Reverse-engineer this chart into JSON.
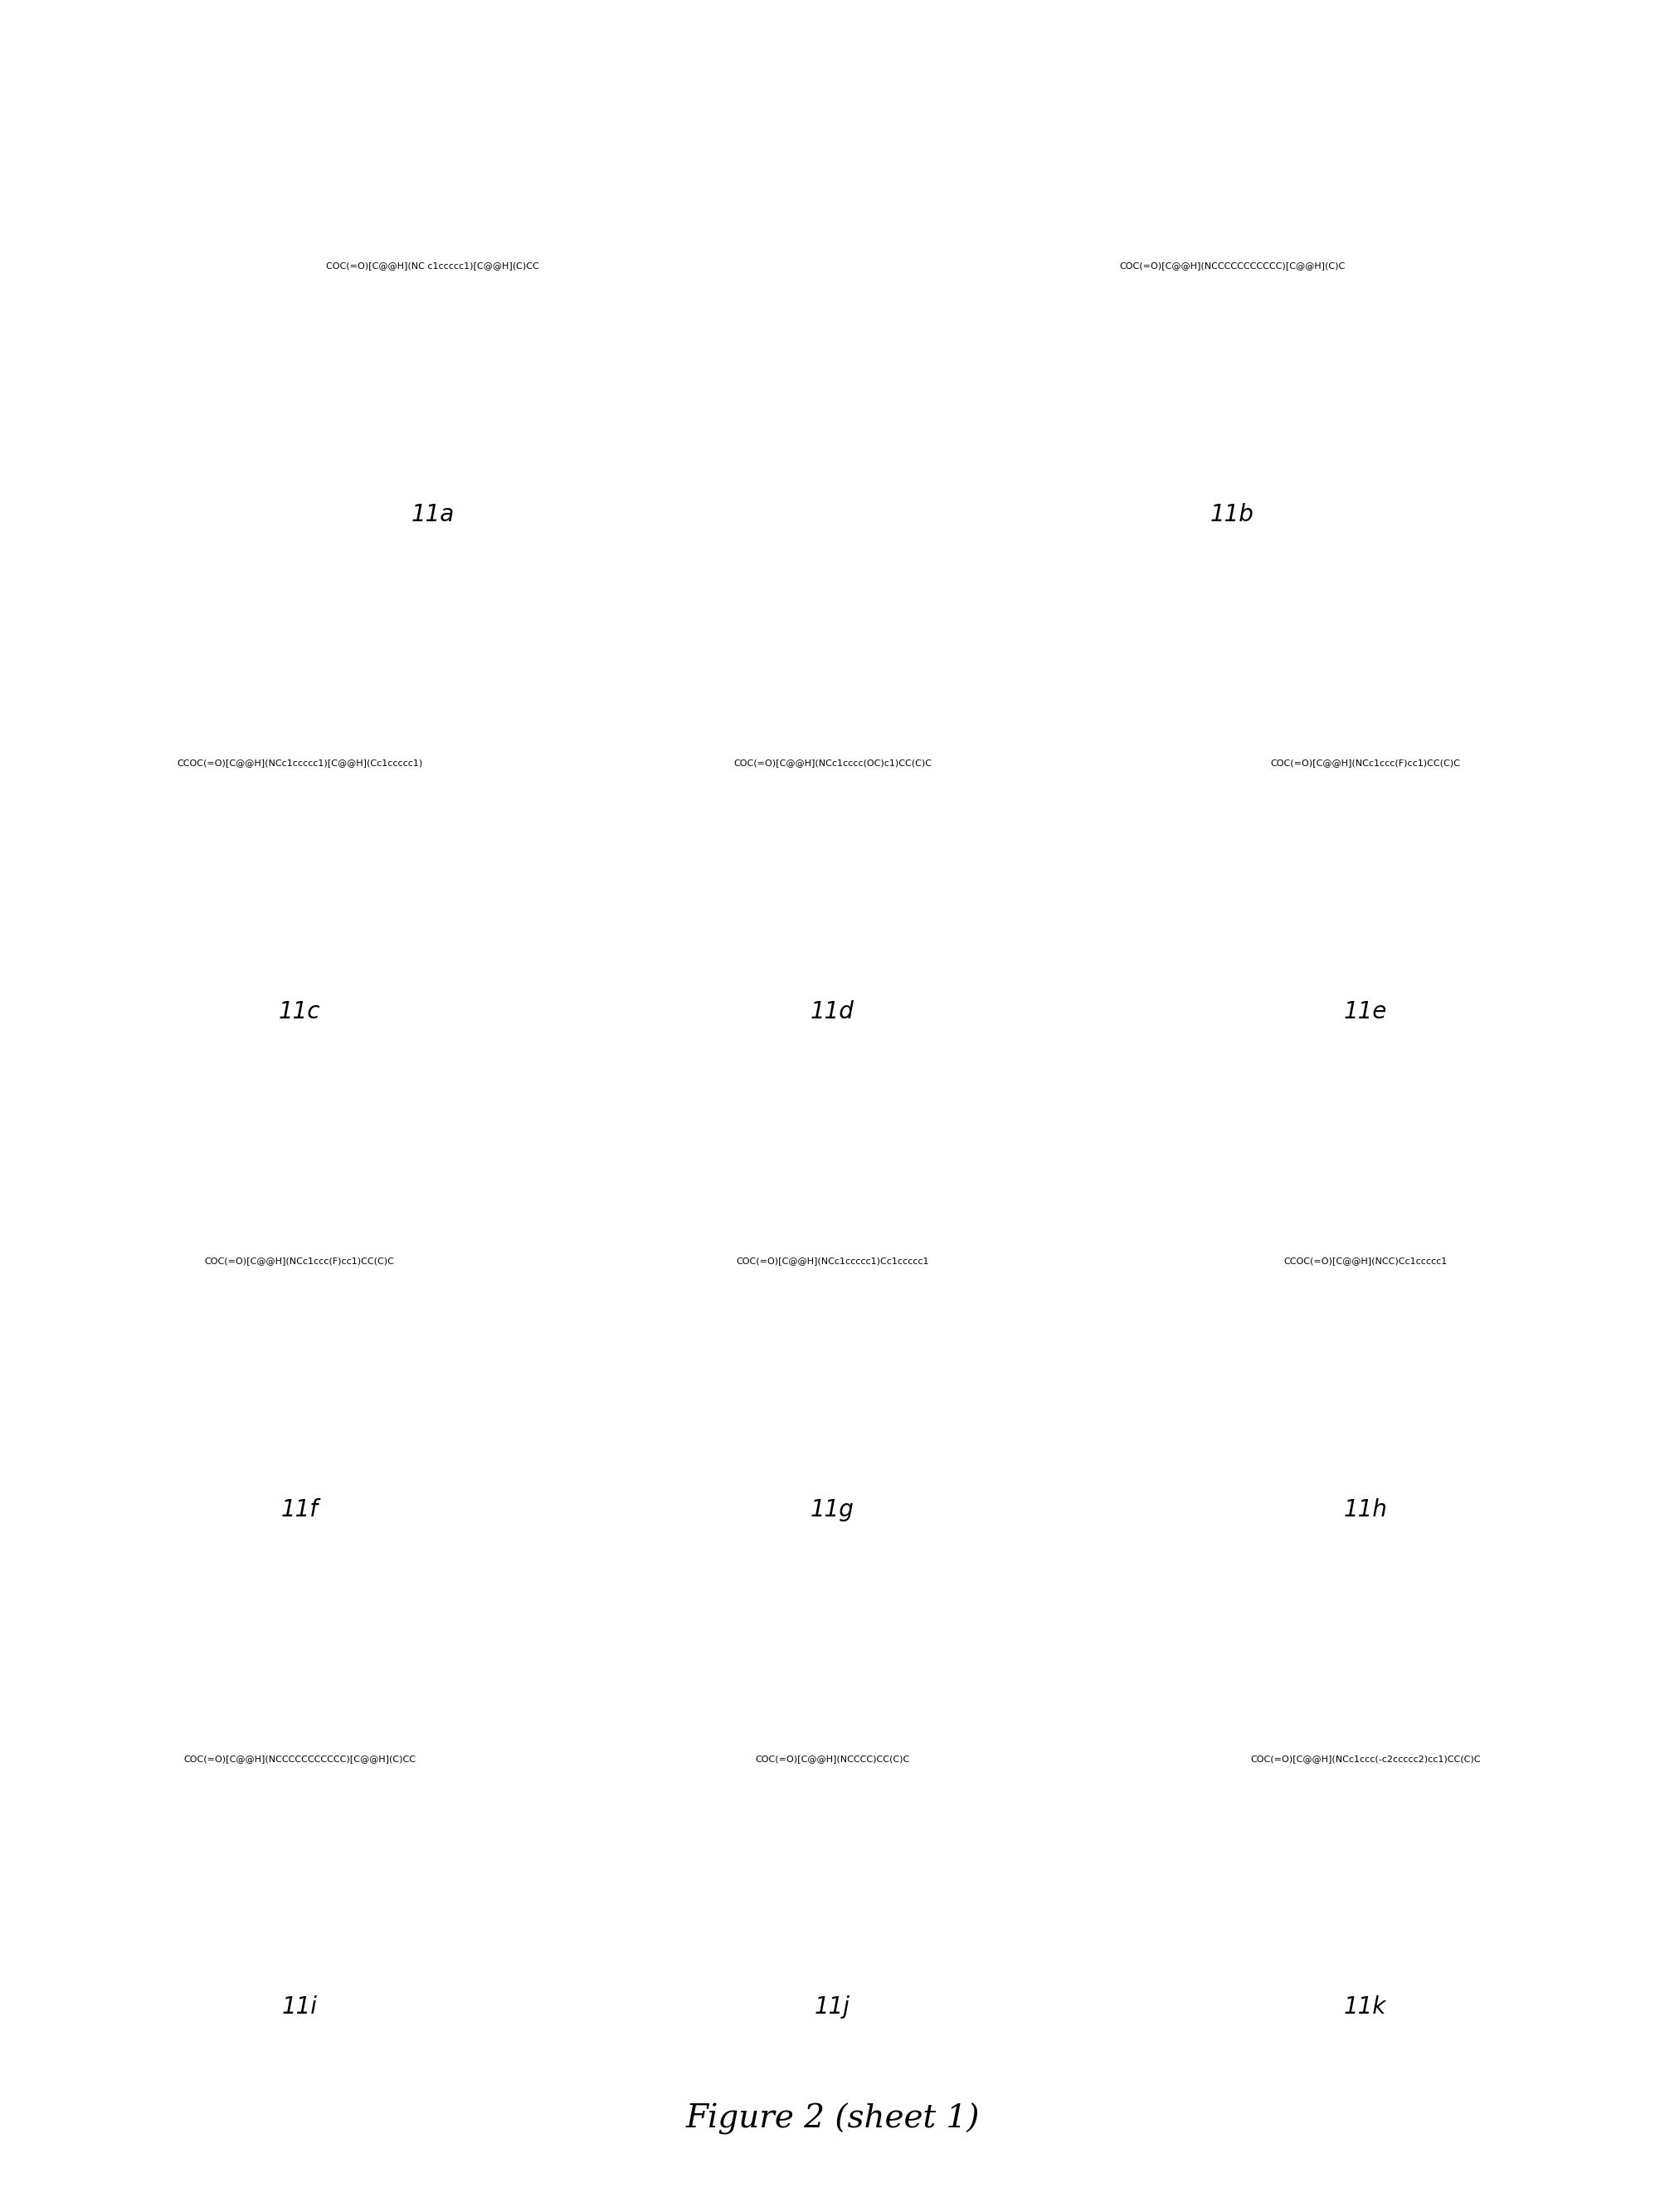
{
  "title": "Figure 2 (sheet 1)",
  "title_fontsize": 28,
  "title_style": "italic",
  "compounds": [
    {
      "id": "11a",
      "smiles": "COC(=O)[C@@H](NC c1ccccc1)[C@@H](C)CC",
      "label": "11a",
      "col": 0,
      "row": 0
    },
    {
      "id": "11b",
      "smiles": "COC(=O)[C@@H](NCCCCCCCCCCC)[C@@H](C)C",
      "label": "11b",
      "col": 1,
      "row": 0
    },
    {
      "id": "11c",
      "smiles": "CCOC(=O)[C@@H](NCc1ccccc1)[C@@H](Cc1ccccc1)",
      "label": "11c",
      "col": 0,
      "row": 1
    },
    {
      "id": "11d",
      "smiles": "COC(=O)[C@@H](NCc1cccc(OC)c1)CC(C)C",
      "label": "11d",
      "col": 1,
      "row": 1
    },
    {
      "id": "11e",
      "smiles": "COC(=O)[C@@H](NCc1ccc(F)cc1)CC(C)C",
      "label": "11e",
      "col": 2,
      "row": 1
    },
    {
      "id": "11f",
      "smiles": "COC(=O)[C@@H](NCc1ccc(F)cc1)CC(C)C",
      "label": "11f",
      "col": 0,
      "row": 2
    },
    {
      "id": "11g",
      "smiles": "COC(=O)[C@@H](NCc1ccccc1)Cc1ccccc1",
      "label": "11g",
      "col": 1,
      "row": 2
    },
    {
      "id": "11h",
      "smiles": "CCOC(=O)[C@@H](NCC)Cc1ccccc1",
      "label": "11h",
      "col": 2,
      "row": 2
    },
    {
      "id": "11i",
      "smiles": "COC(=O)[C@@H](NCCCCCCCCCCC)[C@@H](C)CC",
      "label": "11i",
      "col": 0,
      "row": 3
    },
    {
      "id": "11j",
      "smiles": "COC(=O)[C@@H](NCCCC)CC(C)C",
      "label": "11j",
      "col": 1,
      "row": 3
    },
    {
      "id": "11k",
      "smiles": "COC(=O)[C@@H](NCc1ccc(-c2ccccc2)cc1)CC(C)C",
      "label": "11k",
      "col": 2,
      "row": 3
    }
  ],
  "background_color": "#ffffff",
  "line_color": "#000000"
}
